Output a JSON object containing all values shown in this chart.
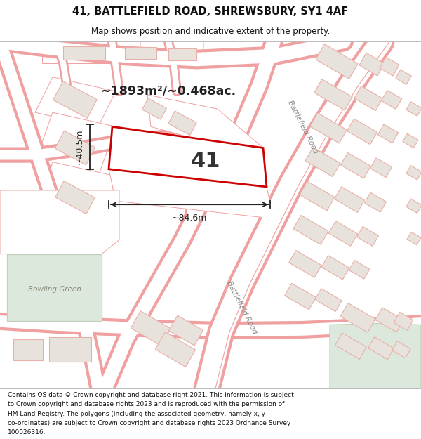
{
  "title": "41, BATTLEFIELD ROAD, SHREWSBURY, SY1 4AF",
  "subtitle": "Map shows position and indicative extent of the property.",
  "footer_lines": [
    "Contains OS data © Crown copyright and database right 2021. This information is subject",
    "to Crown copyright and database rights 2023 and is reproduced with the permission of",
    "HM Land Registry. The polygons (including the associated geometry, namely x, y",
    "co-ordinates) are subject to Crown copyright and database rights 2023 Ordnance Survey",
    "100026316."
  ],
  "map_bg": "#f9f7f5",
  "road_line_color": "#f0a0a0",
  "road_fill_color": "#ffffff",
  "building_fill": "#e8e2dc",
  "building_outline": "#e8b0a8",
  "green_fill": "#dde8dc",
  "green_outline": "#c0d0bc",
  "property_fill": "#ffffff",
  "property_outline": "#cc0000",
  "ann_color": "#222222",
  "area_text": "~1893m²/~0.468ac.",
  "width_text": "~84.6m",
  "height_text": "~40.5m",
  "number_label": "41",
  "road_label1": "Battlefield Road",
  "road_label2": "Battlefield Road",
  "green_label": "Bowling Green"
}
